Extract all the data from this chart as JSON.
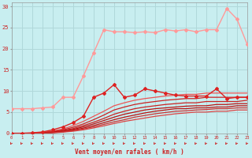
{
  "title": "",
  "xlabel": "Vent moyen/en rafales ( km/h )",
  "background_color": "#c8eef0",
  "grid_color": "#b0d8da",
  "xlim": [
    0,
    23
  ],
  "ylim": [
    0,
    31
  ],
  "yticks": [
    0,
    5,
    10,
    15,
    20,
    25,
    30
  ],
  "xticks": [
    0,
    1,
    2,
    3,
    4,
    5,
    6,
    7,
    8,
    9,
    10,
    11,
    12,
    13,
    14,
    15,
    16,
    17,
    18,
    19,
    20,
    21,
    22,
    23
  ],
  "series": [
    {
      "x": [
        0,
        1,
        2,
        3,
        4,
        5,
        6,
        7,
        8,
        9,
        10,
        11,
        12,
        13,
        14,
        15,
        16,
        17,
        18,
        19,
        20,
        21,
        22,
        23
      ],
      "y": [
        5.8,
        5.8,
        5.8,
        6.0,
        6.2,
        8.5,
        8.5,
        13.5,
        19.0,
        24.5,
        24.0,
        24.0,
        23.8,
        24.0,
        23.8,
        24.5,
        24.2,
        24.5,
        24.0,
        24.5,
        24.5,
        29.5,
        27.0,
        21.0
      ],
      "color": "#ff9999",
      "linewidth": 1.0,
      "marker": "D",
      "markersize": 2.0,
      "zorder": 3
    },
    {
      "x": [
        0,
        1,
        2,
        3,
        4,
        5,
        6,
        7,
        8,
        9,
        10,
        11,
        12,
        13,
        14,
        15,
        16,
        17,
        18,
        19,
        20,
        21,
        22,
        23
      ],
      "y": [
        0.0,
        0.0,
        0.1,
        0.3,
        0.8,
        1.5,
        2.5,
        4.0,
        8.5,
        9.5,
        11.5,
        8.5,
        9.0,
        10.5,
        10.0,
        9.5,
        9.0,
        8.8,
        8.8,
        8.8,
        10.5,
        8.2,
        8.5,
        8.5
      ],
      "color": "#dd2222",
      "linewidth": 1.0,
      "marker": "D",
      "markersize": 2.0,
      "zorder": 4
    },
    {
      "x": [
        0,
        1,
        2,
        3,
        4,
        5,
        6,
        7,
        8,
        9,
        10,
        11,
        12,
        13,
        14,
        15,
        16,
        17,
        18,
        19,
        20,
        21,
        22,
        23
      ],
      "y": [
        0.0,
        0.0,
        0.0,
        0.2,
        0.5,
        1.0,
        1.8,
        2.8,
        4.0,
        5.2,
        6.5,
        7.2,
        7.8,
        8.2,
        8.5,
        8.8,
        9.0,
        9.2,
        9.2,
        9.5,
        9.5,
        9.5,
        9.5,
        9.5
      ],
      "color": "#ee5555",
      "linewidth": 0.9,
      "marker": null,
      "markersize": 0,
      "zorder": 2
    },
    {
      "x": [
        0,
        1,
        2,
        3,
        4,
        5,
        6,
        7,
        8,
        9,
        10,
        11,
        12,
        13,
        14,
        15,
        16,
        17,
        18,
        19,
        20,
        21,
        22,
        23
      ],
      "y": [
        0.0,
        0.0,
        0.0,
        0.15,
        0.4,
        0.8,
        1.4,
        2.2,
        3.2,
        4.3,
        5.5,
        6.2,
        6.8,
        7.2,
        7.5,
        7.8,
        8.0,
        8.2,
        8.2,
        8.5,
        8.5,
        8.5,
        8.5,
        8.5
      ],
      "color": "#cc2222",
      "linewidth": 0.9,
      "marker": null,
      "markersize": 0,
      "zorder": 2
    },
    {
      "x": [
        0,
        1,
        2,
        3,
        4,
        5,
        6,
        7,
        8,
        9,
        10,
        11,
        12,
        13,
        14,
        15,
        16,
        17,
        18,
        19,
        20,
        21,
        22,
        23
      ],
      "y": [
        0.0,
        0.0,
        0.0,
        0.1,
        0.3,
        0.65,
        1.1,
        1.8,
        2.6,
        3.5,
        4.5,
        5.2,
        5.8,
        6.2,
        6.5,
        6.8,
        7.0,
        7.2,
        7.2,
        7.5,
        7.5,
        7.5,
        7.5,
        7.8
      ],
      "color": "#cc2222",
      "linewidth": 0.9,
      "marker": null,
      "markersize": 0,
      "zorder": 2
    },
    {
      "x": [
        0,
        1,
        2,
        3,
        4,
        5,
        6,
        7,
        8,
        9,
        10,
        11,
        12,
        13,
        14,
        15,
        16,
        17,
        18,
        19,
        20,
        21,
        22,
        23
      ],
      "y": [
        0.0,
        0.0,
        0.0,
        0.08,
        0.22,
        0.5,
        0.9,
        1.5,
        2.2,
        3.0,
        3.8,
        4.5,
        5.0,
        5.5,
        5.8,
        6.0,
        6.2,
        6.4,
        6.5,
        6.5,
        6.8,
        6.8,
        7.0,
        7.0
      ],
      "color": "#bb1111",
      "linewidth": 0.9,
      "marker": null,
      "markersize": 0,
      "zorder": 2
    },
    {
      "x": [
        0,
        1,
        2,
        3,
        4,
        5,
        6,
        7,
        8,
        9,
        10,
        11,
        12,
        13,
        14,
        15,
        16,
        17,
        18,
        19,
        20,
        21,
        22,
        23
      ],
      "y": [
        0.0,
        0.0,
        0.0,
        0.06,
        0.18,
        0.4,
        0.75,
        1.2,
        1.8,
        2.5,
        3.2,
        3.8,
        4.3,
        4.8,
        5.2,
        5.5,
        5.8,
        5.8,
        6.0,
        6.0,
        6.2,
        6.2,
        6.5,
        6.5
      ],
      "color": "#bb1111",
      "linewidth": 0.9,
      "marker": null,
      "markersize": 0,
      "zorder": 2
    },
    {
      "x": [
        0,
        1,
        2,
        3,
        4,
        5,
        6,
        7,
        8,
        9,
        10,
        11,
        12,
        13,
        14,
        15,
        16,
        17,
        18,
        19,
        20,
        21,
        22,
        23
      ],
      "y": [
        0.0,
        0.0,
        0.0,
        0.05,
        0.14,
        0.32,
        0.6,
        1.0,
        1.5,
        2.1,
        2.7,
        3.2,
        3.8,
        4.2,
        4.6,
        4.9,
        5.2,
        5.3,
        5.5,
        5.6,
        5.8,
        5.8,
        6.0,
        6.0
      ],
      "color": "#cc3333",
      "linewidth": 0.9,
      "marker": null,
      "markersize": 0,
      "zorder": 2
    },
    {
      "x": [
        0,
        1,
        2,
        3,
        4,
        5,
        6,
        7,
        8,
        9,
        10,
        11,
        12,
        13,
        14,
        15,
        16,
        17,
        18,
        19,
        20,
        21,
        22,
        23
      ],
      "y": [
        0.0,
        0.0,
        0.0,
        0.04,
        0.1,
        0.25,
        0.48,
        0.8,
        1.25,
        1.75,
        2.3,
        2.8,
        3.2,
        3.6,
        4.0,
        4.3,
        4.6,
        4.8,
        5.0,
        5.0,
        5.2,
        5.2,
        5.5,
        5.5
      ],
      "color": "#dd4444",
      "linewidth": 0.9,
      "marker": null,
      "markersize": 0,
      "zorder": 1
    }
  ],
  "arrow_color": "#cc2222",
  "tick_color": "#cc2222",
  "xlabel_color": "#cc2222",
  "ytick_color": "#cc2222"
}
